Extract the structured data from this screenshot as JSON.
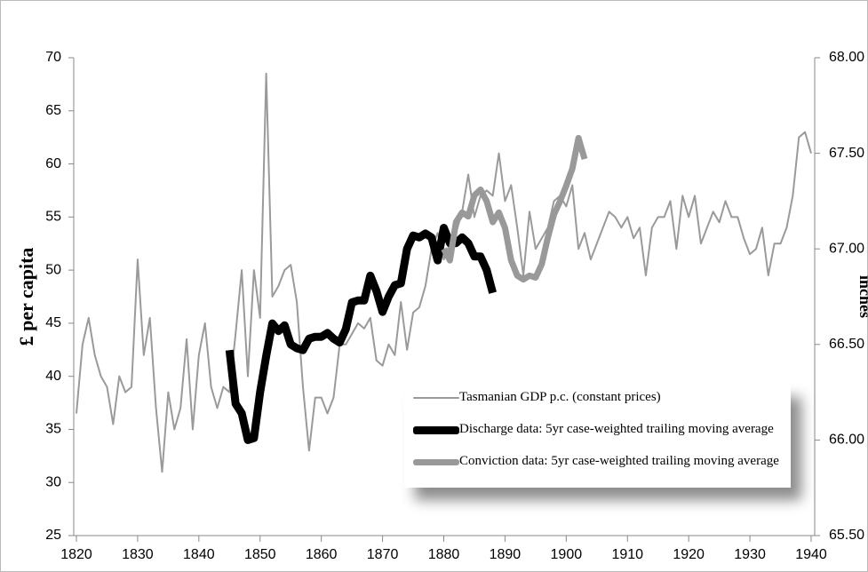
{
  "chart_data": {
    "type": "line",
    "ylabel": "£ per capita",
    "y2label": "inches",
    "xlim": [
      1820,
      1940
    ],
    "xticks": [
      1820,
      1830,
      1840,
      1850,
      1860,
      1870,
      1880,
      1890,
      1900,
      1910,
      1920,
      1930,
      1940
    ],
    "ylim": [
      25,
      70
    ],
    "yticks": [
      25,
      30,
      35,
      40,
      45,
      50,
      55,
      60,
      65,
      70
    ],
    "y2lim": [
      65.5,
      68
    ],
    "y2ticks": [
      {
        "value": 65.5,
        "label": "65.50"
      },
      {
        "value": 66,
        "label": "66.00"
      },
      {
        "value": 66.5,
        "label": "66.50"
      },
      {
        "value": 67,
        "label": "67.00"
      },
      {
        "value": 67.5,
        "label": "67.50"
      },
      {
        "value": 68,
        "label": "68.00"
      }
    ],
    "legend": "lower right",
    "series": [
      {
        "name": "Tasmanian GDP p.c. (constant prices)",
        "color": "#9a9a9a",
        "width": 2,
        "x": [
          1820,
          1821,
          1822,
          1823,
          1824,
          1825,
          1826,
          1827,
          1828,
          1829,
          1830,
          1831,
          1832,
          1833,
          1834,
          1835,
          1836,
          1837,
          1838,
          1839,
          1840,
          1841,
          1842,
          1843,
          1844,
          1845,
          1846,
          1847,
          1848,
          1849,
          1850,
          1851,
          1852,
          1853,
          1854,
          1855,
          1856,
          1857,
          1858,
          1859,
          1860,
          1861,
          1862,
          1863,
          1864,
          1865,
          1866,
          1867,
          1868,
          1869,
          1870,
          1871,
          1872,
          1873,
          1874,
          1875,
          1876,
          1877,
          1878,
          1879,
          1880,
          1881,
          1882,
          1883,
          1884,
          1885,
          1886,
          1887,
          1888,
          1889,
          1890,
          1891,
          1892,
          1893,
          1894,
          1895,
          1896,
          1897,
          1898,
          1899,
          1900,
          1901,
          1902,
          1903,
          1904,
          1905,
          1906,
          1907,
          1908,
          1909,
          1910,
          1911,
          1912,
          1913,
          1914,
          1915,
          1916,
          1917,
          1918,
          1919,
          1920,
          1921,
          1922,
          1923,
          1924,
          1925,
          1926,
          1927,
          1928,
          1929,
          1930,
          1931,
          1932,
          1933,
          1934,
          1935,
          1936,
          1937,
          1938,
          1939,
          1940
        ],
        "values": [
          36.5,
          43,
          45.5,
          42,
          40,
          39,
          35.5,
          40,
          38.5,
          39,
          51,
          42,
          45.5,
          37,
          31,
          38.5,
          35,
          37,
          43.5,
          35,
          42,
          45,
          39,
          37,
          39,
          38.5,
          44,
          50,
          40,
          50,
          45.5,
          68.5,
          47.5,
          48.5,
          50,
          50.5,
          47,
          39,
          33,
          38,
          38,
          36.5,
          38,
          43,
          43,
          44,
          45,
          44.5,
          45.5,
          41.5,
          41,
          43,
          42,
          47,
          42.5,
          46,
          46.5,
          48.5,
          52,
          53.5,
          51,
          52.5,
          53.5,
          55.5,
          59,
          55,
          57,
          57.5,
          57,
          61,
          56.5,
          58,
          54,
          49.5,
          55.5,
          52,
          53,
          54,
          56.5,
          57,
          56,
          58,
          52,
          53.5,
          51,
          52.5,
          54,
          55.5,
          55,
          54,
          55,
          53,
          54,
          49.5,
          54,
          55,
          55,
          56.5,
          52,
          57,
          55,
          57,
          52.5,
          54,
          55.5,
          54.5,
          56.5,
          55,
          55,
          53,
          51.5,
          52,
          54,
          49.5,
          52.5,
          52.5,
          54,
          57,
          62.5,
          63,
          61
        ]
      },
      {
        "name": "Discharge data: 5yr case-weighted trailing moving average",
        "color": "#000000",
        "width": 9,
        "axis": "y2",
        "x": [
          1845,
          1846,
          1847,
          1848,
          1849,
          1850,
          1851,
          1852,
          1853,
          1854,
          1855,
          1856,
          1857,
          1858,
          1859,
          1860,
          1861,
          1862,
          1863,
          1864,
          1865,
          1866,
          1867,
          1868,
          1869,
          1870,
          1871,
          1872,
          1873,
          1874,
          1875,
          1876,
          1877,
          1878,
          1879,
          1880,
          1881,
          1882,
          1883,
          1884,
          1885,
          1886,
          1887,
          1888
        ],
        "values": [
          66.47,
          66.19,
          66.14,
          66.0,
          66.01,
          66.25,
          66.44,
          66.61,
          66.57,
          66.6,
          66.5,
          66.48,
          66.47,
          66.53,
          66.54,
          66.54,
          66.56,
          66.53,
          66.51,
          66.58,
          66.72,
          66.73,
          66.73,
          66.86,
          66.78,
          66.67,
          66.75,
          66.81,
          66.82,
          67.0,
          67.07,
          67.06,
          67.08,
          67.06,
          66.94,
          67.11,
          67.03,
          67.03,
          67.06,
          67.03,
          66.96,
          66.96,
          66.89,
          66.77
        ]
      },
      {
        "name": "Conviction data: 5yr case-weighted trailing moving average",
        "color": "#999999",
        "width": 7,
        "axis": "y2",
        "x": [
          1880,
          1881,
          1882,
          1883,
          1884,
          1885,
          1886,
          1887,
          1888,
          1889,
          1890,
          1891,
          1892,
          1893,
          1894,
          1895,
          1896,
          1897,
          1898,
          1899,
          1900,
          1901,
          1902,
          1903
        ],
        "values": [
          67.0,
          66.94,
          67.14,
          67.19,
          67.17,
          67.28,
          67.31,
          67.25,
          67.14,
          67.19,
          67.11,
          66.94,
          66.86,
          66.84,
          66.86,
          66.85,
          66.92,
          67.06,
          67.18,
          67.25,
          67.33,
          67.42,
          67.58,
          67.47
        ]
      }
    ]
  }
}
